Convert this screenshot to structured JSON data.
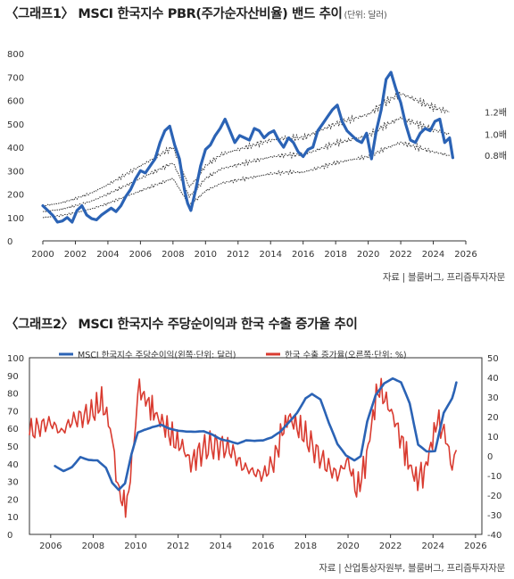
{
  "charts": {
    "c1": {
      "title": "〈그래프1〉 MSCI 한국지수 PBR(주가순자산비율) 밴드 추이",
      "unit": "(단위: 달러)",
      "source": "자료 | 블룸버그, 프리즘투자자문"
    },
    "c2": {
      "title": "〈그래프2〉 MSCI 한국지수 주당순이익과 한국 수출 증가율 추이",
      "source": "자료 | 산업통상자원부, 블룸버그, 프리즘투자자문"
    }
  },
  "chart_data": [
    {
      "type": "line",
      "x_ticks": [
        2000,
        2002,
        2004,
        2006,
        2008,
        2010,
        2012,
        2014,
        2016,
        2018,
        2020,
        2022,
        2024,
        2026
      ],
      "y_ticks": [
        0,
        100,
        200,
        300,
        400,
        500,
        600,
        700,
        800
      ],
      "xlim": [
        2000,
        2026
      ],
      "ylim": [
        0,
        800
      ],
      "grid": false,
      "series": [
        {
          "role": "index",
          "color": "#2b63b5",
          "x": [
            2000.0,
            2000.3,
            2000.6,
            2000.9,
            2001.2,
            2001.5,
            2001.8,
            2002.1,
            2002.4,
            2002.7,
            2003.0,
            2003.3,
            2003.6,
            2003.9,
            2004.2,
            2004.5,
            2004.8,
            2005.1,
            2005.4,
            2005.7,
            2006.0,
            2006.3,
            2006.6,
            2006.9,
            2007.2,
            2007.5,
            2007.8,
            2008.1,
            2008.4,
            2008.7,
            2008.9,
            2009.1,
            2009.4,
            2009.7,
            2010.0,
            2010.3,
            2010.6,
            2010.9,
            2011.2,
            2011.5,
            2011.8,
            2012.1,
            2012.4,
            2012.7,
            2013.0,
            2013.3,
            2013.6,
            2013.9,
            2014.2,
            2014.5,
            2014.8,
            2015.1,
            2015.4,
            2015.7,
            2016.0,
            2016.3,
            2016.6,
            2016.9,
            2017.2,
            2017.5,
            2017.8,
            2018.1,
            2018.4,
            2018.7,
            2019.0,
            2019.3,
            2019.6,
            2019.9,
            2020.2,
            2020.5,
            2020.8,
            2021.1,
            2021.4,
            2021.7,
            2022.0,
            2022.3,
            2022.6,
            2022.9,
            2023.2,
            2023.5,
            2023.8,
            2024.1,
            2024.4,
            2024.7,
            2025.0,
            2025.2
          ],
          "y": [
            150,
            130,
            110,
            80,
            85,
            100,
            80,
            130,
            150,
            110,
            95,
            90,
            110,
            125,
            140,
            125,
            150,
            190,
            220,
            265,
            300,
            290,
            320,
            350,
            420,
            470,
            490,
            410,
            350,
            220,
            160,
            130,
            220,
            320,
            390,
            410,
            450,
            480,
            520,
            470,
            420,
            450,
            440,
            430,
            480,
            470,
            440,
            460,
            470,
            430,
            400,
            440,
            420,
            380,
            360,
            390,
            400,
            470,
            500,
            530,
            560,
            580,
            510,
            470,
            450,
            430,
            420,
            460,
            350,
            470,
            560,
            690,
            720,
            650,
            590,
            500,
            430,
            420,
            460,
            480,
            470,
            510,
            520,
            420,
            440,
            355
          ]
        },
        {
          "name": "1.2배",
          "role": "band",
          "color": "#333333",
          "x": [
            2000.0,
            2001.0,
            2002.0,
            2003.0,
            2004.0,
            2005.0,
            2006.0,
            2007.0,
            2008.0,
            2008.7,
            2009.0,
            2009.5,
            2010.0,
            2011.0,
            2012.0,
            2013.0,
            2014.0,
            2015.0,
            2016.0,
            2017.0,
            2018.0,
            2019.0,
            2020.0,
            2021.0,
            2022.0,
            2023.0,
            2024.0,
            2025.0
          ],
          "y": [
            150,
            160,
            180,
            205,
            240,
            280,
            320,
            360,
            400,
            280,
            230,
            270,
            320,
            370,
            390,
            410,
            430,
            440,
            440,
            470,
            500,
            520,
            540,
            590,
            630,
            600,
            570,
            550
          ]
        },
        {
          "name": "1.0배",
          "role": "band",
          "color": "#333333",
          "x": [
            2000.0,
            2001.0,
            2002.0,
            2003.0,
            2004.0,
            2005.0,
            2006.0,
            2007.0,
            2008.0,
            2008.7,
            2009.0,
            2009.5,
            2010.0,
            2011.0,
            2012.0,
            2013.0,
            2014.0,
            2015.0,
            2016.0,
            2017.0,
            2018.0,
            2019.0,
            2020.0,
            2021.0,
            2022.0,
            2023.0,
            2024.0,
            2025.0
          ],
          "y": [
            125,
            133,
            150,
            170,
            200,
            233,
            267,
            300,
            333,
            233,
            190,
            225,
            267,
            308,
            325,
            342,
            358,
            367,
            367,
            392,
            417,
            433,
            450,
            492,
            525,
            500,
            475,
            455
          ]
        },
        {
          "name": "0.8배",
          "role": "band",
          "color": "#333333",
          "x": [
            2000.0,
            2001.0,
            2002.0,
            2003.0,
            2004.0,
            2005.0,
            2006.0,
            2007.0,
            2008.0,
            2008.7,
            2009.0,
            2009.5,
            2010.0,
            2011.0,
            2012.0,
            2013.0,
            2014.0,
            2015.0,
            2016.0,
            2017.0,
            2018.0,
            2019.0,
            2020.0,
            2021.0,
            2022.0,
            2023.0,
            2024.0,
            2025.0
          ],
          "y": [
            100,
            107,
            120,
            137,
            160,
            187,
            213,
            240,
            267,
            187,
            153,
            180,
            213,
            247,
            260,
            273,
            287,
            293,
            293,
            313,
            333,
            347,
            360,
            393,
            420,
            400,
            380,
            365
          ]
        }
      ]
    },
    {
      "type": "line",
      "x_ticks": [
        2006,
        2008,
        2010,
        2012,
        2014,
        2016,
        2018,
        2020,
        2022,
        2024,
        2026
      ],
      "y_ticks_left": [
        0,
        10,
        20,
        30,
        40,
        50,
        60,
        70,
        80,
        90,
        100
      ],
      "y_ticks_right": [
        -40,
        -30,
        -20,
        -10,
        0,
        10,
        20,
        30,
        40,
        50
      ],
      "xlim": [
        2005,
        2026.3
      ],
      "ylim_left": [
        0,
        100
      ],
      "ylim_right": [
        -40,
        50
      ],
      "grid": false,
      "legend_position": "top",
      "series": [
        {
          "name": "MSCI 한국지수 주당순이익(왼쪽·단위: 달러)",
          "axis": "left",
          "color": "#2b63b5",
          "x": [
            2006.2,
            2006.6,
            2007.0,
            2007.4,
            2007.8,
            2008.2,
            2008.6,
            2008.9,
            2009.2,
            2009.5,
            2009.8,
            2010.1,
            2010.4,
            2010.8,
            2011.2,
            2011.6,
            2012.0,
            2012.4,
            2012.8,
            2013.2,
            2013.6,
            2014.0,
            2014.4,
            2014.8,
            2015.2,
            2015.6,
            2016.0,
            2016.4,
            2016.8,
            2017.2,
            2017.6,
            2018.0,
            2018.3,
            2018.7,
            2019.1,
            2019.5,
            2019.9,
            2020.3,
            2020.6,
            2020.9,
            2021.3,
            2021.7,
            2022.1,
            2022.5,
            2022.9,
            2023.3,
            2023.7,
            2024.1,
            2024.5,
            2024.9,
            2025.1
          ],
          "y": [
            38,
            36,
            39,
            45,
            43,
            42,
            37,
            28,
            24,
            28,
            45,
            58,
            60,
            62,
            63,
            60,
            58,
            57,
            57,
            58,
            57,
            55,
            54,
            52,
            53,
            52,
            52,
            54,
            58,
            64,
            70,
            78,
            80,
            76,
            62,
            50,
            44,
            42,
            45,
            65,
            80,
            86,
            88,
            85,
            73,
            50,
            47,
            48,
            70,
            78,
            86
          ]
        },
        {
          "name": "한국 수출 증가율(오른쪽·단위: %)",
          "axis": "right",
          "color": "#d93b30",
          "x": [
            2005.0,
            2005.5,
            2006.0,
            2006.5,
            2007.0,
            2007.5,
            2008.0,
            2008.4,
            2008.8,
            2009.0,
            2009.3,
            2009.6,
            2009.9,
            2010.1,
            2010.4,
            2010.7,
            2011.0,
            2011.4,
            2011.8,
            2012.2,
            2012.6,
            2013.0,
            2013.5,
            2014.0,
            2014.5,
            2015.0,
            2015.5,
            2016.0,
            2016.5,
            2016.9,
            2017.2,
            2017.6,
            2018.0,
            2018.5,
            2019.0,
            2019.5,
            2020.0,
            2020.4,
            2020.8,
            2021.1,
            2021.4,
            2021.8,
            2022.2,
            2022.6,
            2022.9,
            2023.2,
            2023.6,
            2023.9,
            2024.2,
            2024.6,
            2024.9,
            2025.1
          ],
          "y": [
            12,
            15,
            17,
            12,
            18,
            20,
            22,
            28,
            15,
            -5,
            -22,
            -25,
            5,
            35,
            30,
            25,
            20,
            15,
            8,
            5,
            -4,
            2,
            5,
            5,
            3,
            -5,
            -8,
            -10,
            -3,
            12,
            20,
            15,
            10,
            2,
            -5,
            -10,
            -2,
            -18,
            -5,
            15,
            35,
            28,
            18,
            5,
            -5,
            -12,
            -8,
            5,
            18,
            10,
            -6,
            3
          ]
        }
      ]
    }
  ]
}
